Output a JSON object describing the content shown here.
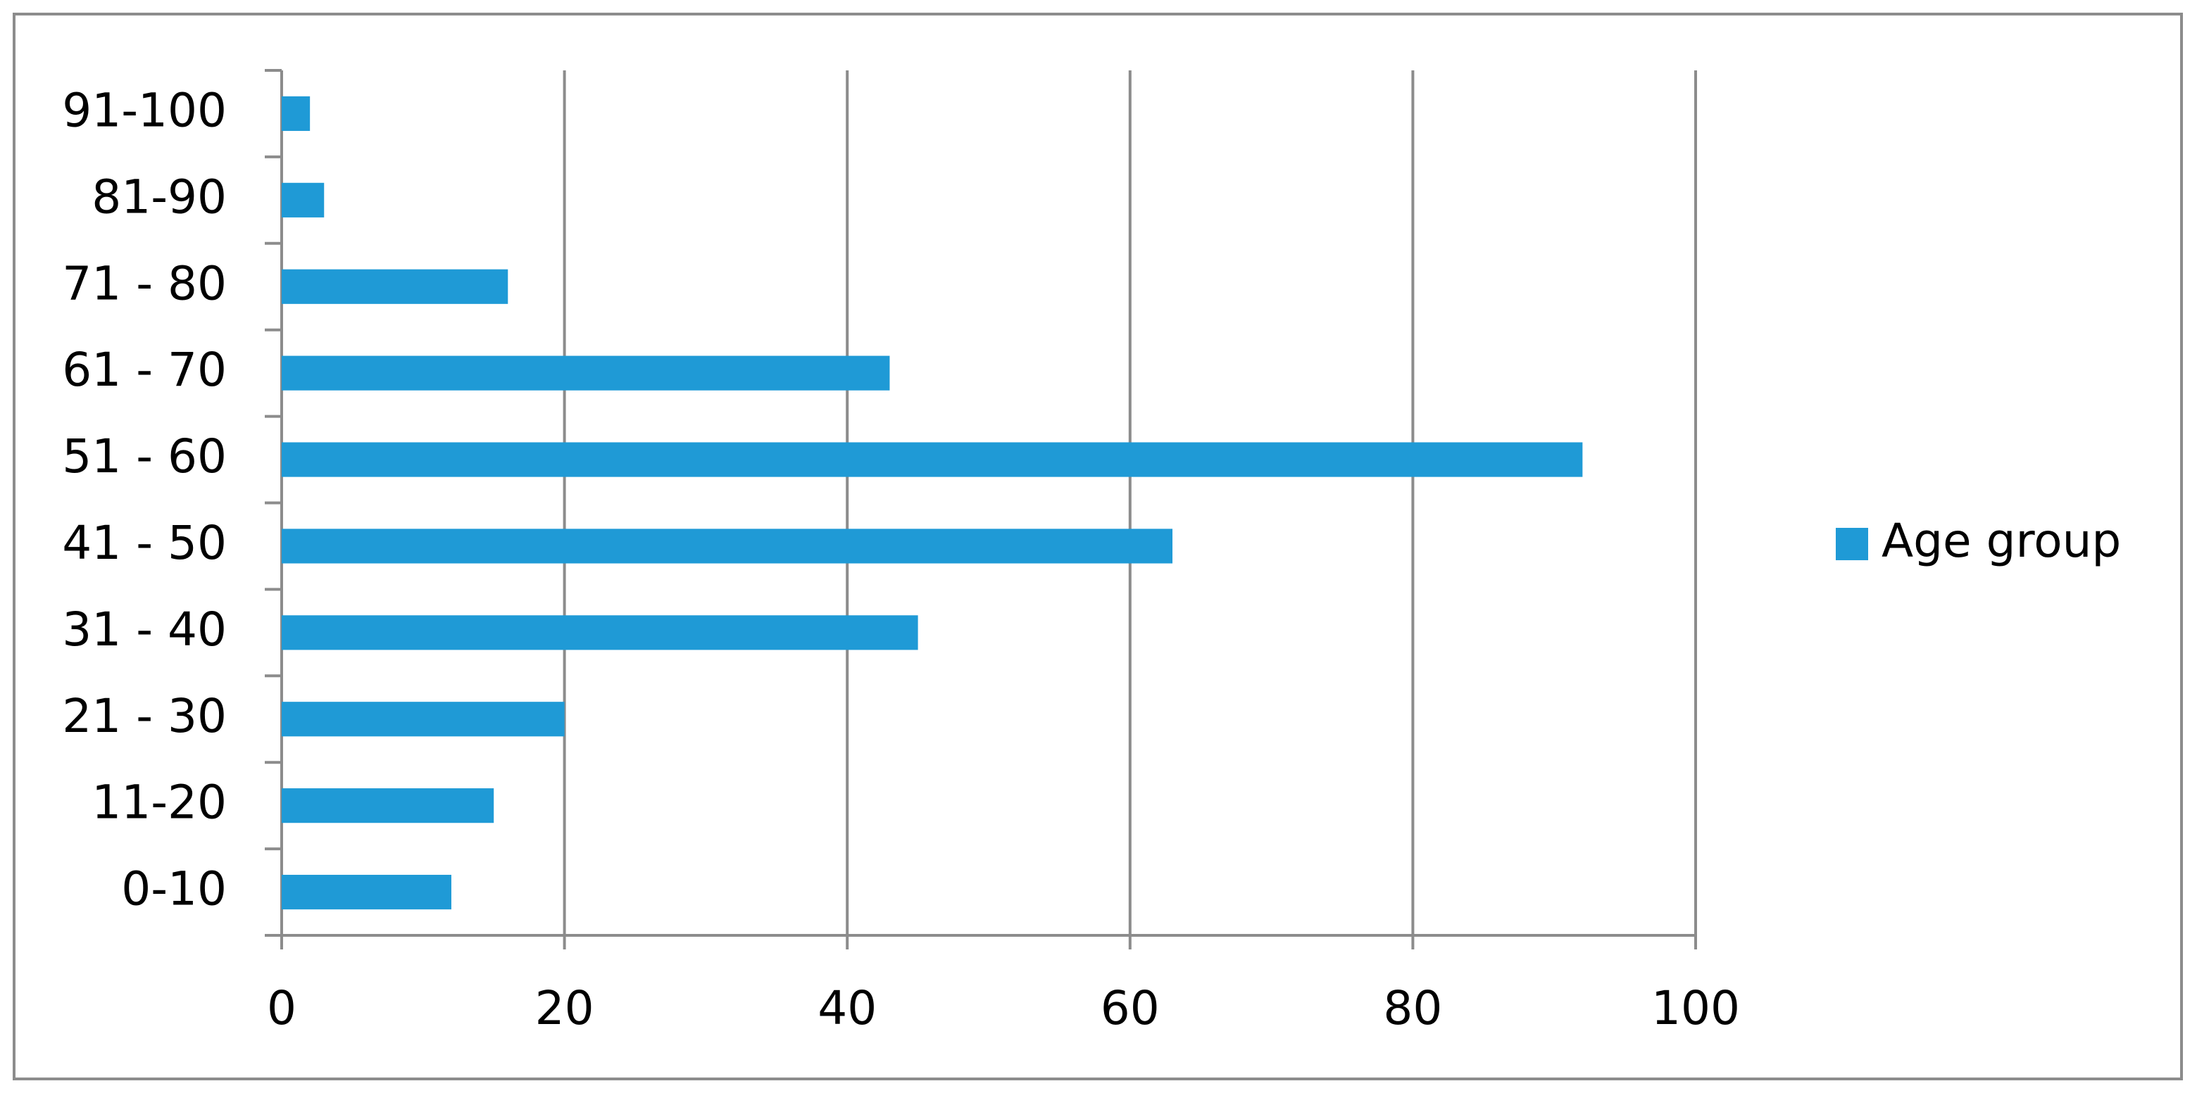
{
  "chart_data": {
    "type": "bar",
    "orientation": "horizontal",
    "categories": [
      "0-10",
      "11-20",
      "21 - 30",
      "31 - 40",
      "41 - 50",
      "51 - 60",
      "61 - 70",
      "71 - 80",
      "81-90",
      "91-100"
    ],
    "series": [
      {
        "name": "Age group",
        "color": "#1f9ad6",
        "values": [
          12,
          15,
          20,
          45,
          63,
          92,
          43,
          16,
          3,
          2
        ]
      }
    ],
    "xlim": [
      0,
      100
    ],
    "xticks": [
      0,
      20,
      40,
      60,
      80,
      100
    ],
    "grid": true,
    "legend": "right"
  }
}
